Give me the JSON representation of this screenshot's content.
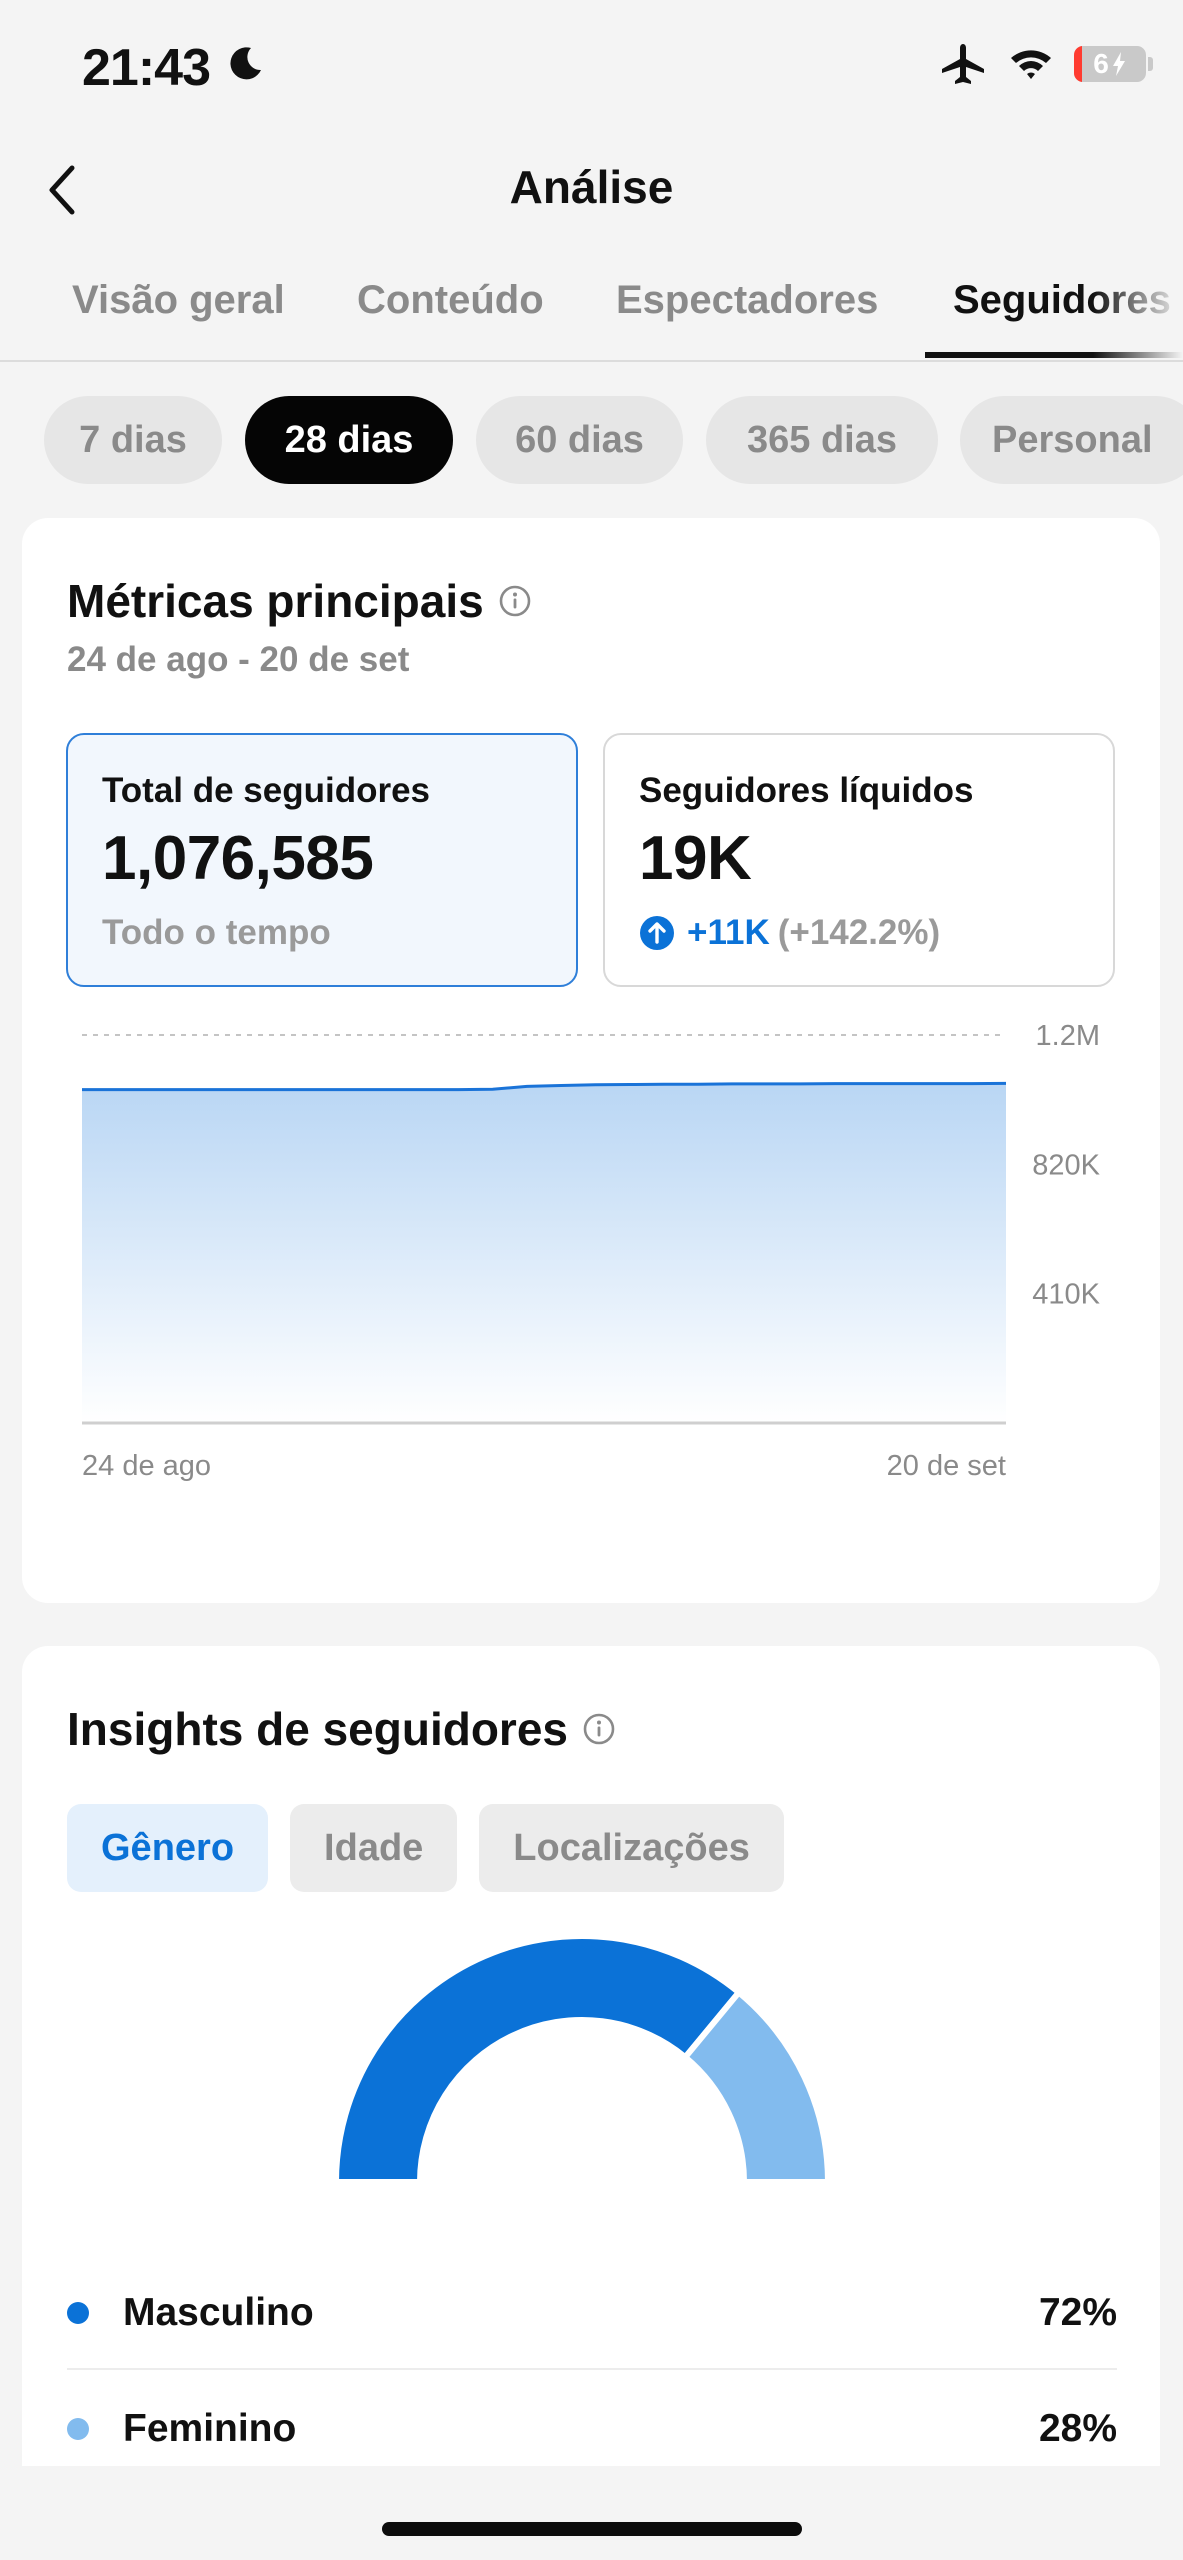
{
  "status_bar": {
    "time": "21:43",
    "battery": "6"
  },
  "header": {
    "title": "Análise"
  },
  "tabs": [
    {
      "label": "Visão geral"
    },
    {
      "label": "Conteúdo"
    },
    {
      "label": "Espectadores"
    },
    {
      "label": "Seguidores",
      "active": true
    }
  ],
  "ranges": [
    {
      "label": "7 dias"
    },
    {
      "label": "28 dias",
      "active": true
    },
    {
      "label": "60 dias"
    },
    {
      "label": "365 dias"
    },
    {
      "label": "Personal"
    }
  ],
  "key_metrics": {
    "title": "Métricas principais",
    "date_range": "24 de ago - 20 de set",
    "total": {
      "label": "Total de seguidores",
      "value": "1,076,585",
      "footnote": "Todo o tempo"
    },
    "net": {
      "label": "Seguidores líquidos",
      "value": "19K",
      "change": "+11K",
      "change_pct": "(+142.2%)"
    }
  },
  "chart_data": {
    "type": "area",
    "x_start_label": "24 de ago",
    "x_end_label": "20 de set",
    "y_ticks": [
      {
        "value": 1230000,
        "label": "1.2M"
      },
      {
        "value": 820000,
        "label": "820K"
      },
      {
        "value": 410000,
        "label": "410K"
      }
    ],
    "ylim": [
      0,
      1230000
    ],
    "series": [
      {
        "values": [
          1057000,
          1057000,
          1057000,
          1057000,
          1057000,
          1057000,
          1057000,
          1057000,
          1057000,
          1057000,
          1057000,
          1057000,
          1058000,
          1067000,
          1070000,
          1072000,
          1073000,
          1074000,
          1074000,
          1075000,
          1075000,
          1075000,
          1076000,
          1076000,
          1076000,
          1076000,
          1076000,
          1076585
        ]
      }
    ],
    "color": "#1a73d8",
    "grid": true
  },
  "insights": {
    "title": "Insights de seguidores",
    "segments": [
      {
        "label": "Gênero",
        "active": true
      },
      {
        "label": "Idade"
      },
      {
        "label": "Localizações"
      }
    ],
    "gender": [
      {
        "label": "Masculino",
        "percent": 72,
        "display": "72%",
        "color": "#0b72d7"
      },
      {
        "label": "Feminino",
        "percent": 28,
        "display": "28%",
        "color": "#82bbee"
      }
    ]
  }
}
